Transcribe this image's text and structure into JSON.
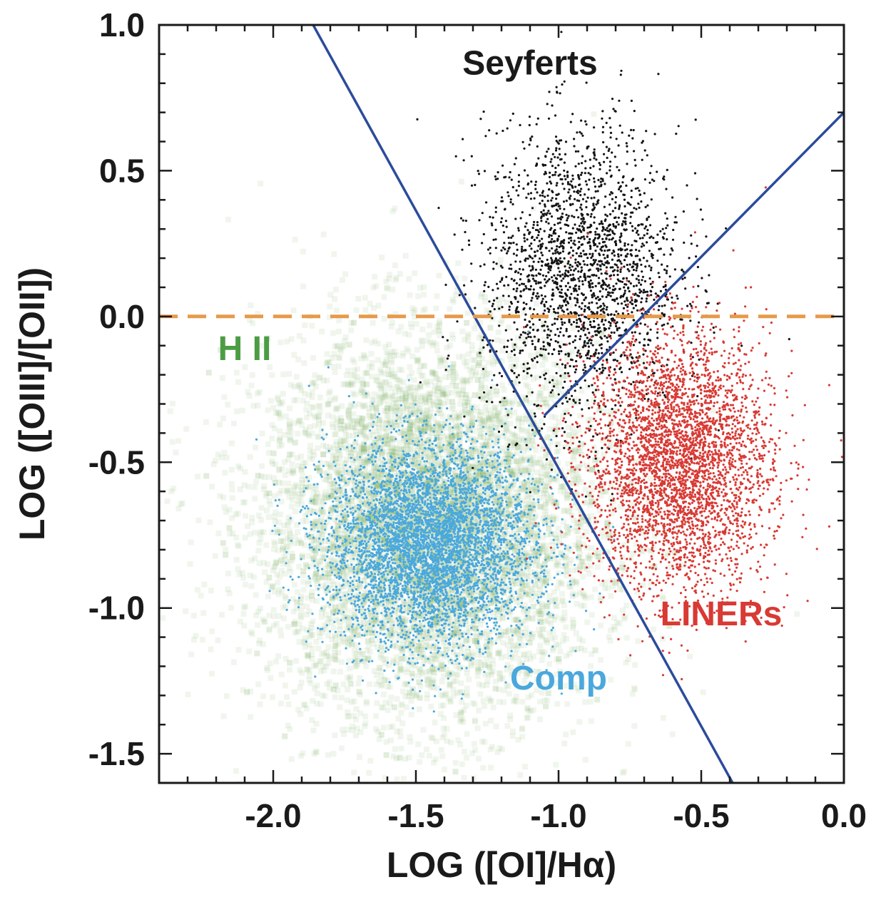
{
  "chart_data": {
    "type": "scatter",
    "xlabel": "LOG ([OI]/Hα)",
    "ylabel": "LOG ([OIII]/[OII])",
    "xlim": [
      -2.4,
      0.0
    ],
    "ylim": [
      -1.6,
      1.0
    ],
    "x_ticks": [
      {
        "value": -2.0,
        "label": "-2.0"
      },
      {
        "value": -1.5,
        "label": "-1.5"
      },
      {
        "value": -1.0,
        "label": "-1.0"
      },
      {
        "value": -0.5,
        "label": "-0.5"
      },
      {
        "value": 0.0,
        "label": "0.0"
      }
    ],
    "y_ticks": [
      {
        "value": 1.0,
        "label": "1.0"
      },
      {
        "value": 0.5,
        "label": "0.5"
      },
      {
        "value": 0.0,
        "label": "0.0"
      },
      {
        "value": -0.5,
        "label": "-0.5"
      },
      {
        "value": -1.0,
        "label": "-1.0"
      },
      {
        "value": -1.5,
        "label": "-1.5"
      }
    ],
    "grid": false,
    "legend": "none",
    "region_labels": [
      {
        "text": "Seyferts",
        "x": -1.1,
        "y": 0.83,
        "color": "#1a1a1a"
      },
      {
        "text": "H II",
        "x": -2.1,
        "y": -0.15,
        "color": "#4c9c44"
      },
      {
        "text": "LINERs",
        "x": -0.43,
        "y": -1.06,
        "color": "#d83a34"
      },
      {
        "text": "Comp",
        "x": -1.0,
        "y": -1.28,
        "color": "#4aa8dc"
      }
    ],
    "lines": [
      {
        "name": "demarcation",
        "style": "solid",
        "color": "#2b4b9c",
        "points": [
          [
            -1.86,
            1.0
          ],
          [
            -0.39,
            -1.6
          ]
        ]
      },
      {
        "name": "seyfert-liner",
        "style": "solid",
        "color": "#2b4b9c",
        "points": [
          [
            -1.05,
            -0.34
          ],
          [
            0.0,
            0.7
          ]
        ]
      },
      {
        "name": "zero-line",
        "style": "dashed",
        "color": "#e69a4a",
        "points": [
          [
            -2.4,
            0.0
          ],
          [
            0.0,
            0.0
          ]
        ]
      }
    ],
    "series": [
      {
        "color": "#5b9a36",
        "kind": "density",
        "center": [
          -1.45,
          -0.72
        ],
        "spread": [
          0.3,
          0.33
        ],
        "count": 7000
      },
      {
        "color": "#4aa8dc",
        "kind": "points",
        "center": [
          -1.45,
          -0.78
        ],
        "spread": [
          0.18,
          0.17
        ],
        "count": 5000
      },
      {
        "color": "#141414",
        "kind": "points",
        "center": [
          -0.92,
          0.15
        ],
        "spread": [
          0.17,
          0.25
        ],
        "count": 2200
      },
      {
        "color": "#d83a34",
        "kind": "points",
        "center": [
          -0.58,
          -0.5
        ],
        "spread": [
          0.16,
          0.22
        ],
        "count": 3800
      }
    ]
  }
}
